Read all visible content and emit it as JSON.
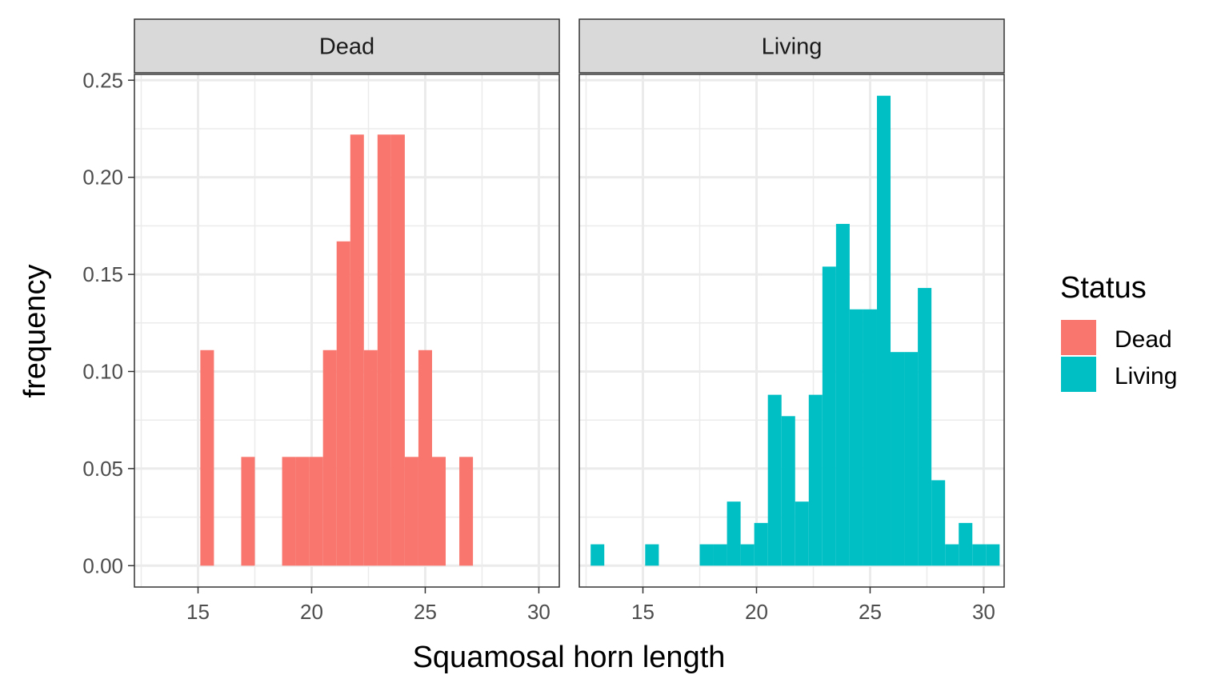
{
  "chart_data": {
    "type": "bar",
    "subtype": "faceted-histogram",
    "title": "",
    "xlabel": "Squamosal horn length",
    "ylabel": "frequency",
    "xlim": [
      12.2,
      30.9
    ],
    "ylim": [
      -0.011,
      0.253
    ],
    "x_ticks": [
      15,
      20,
      25,
      30
    ],
    "x_tick_labels": [
      "15",
      "20",
      "25",
      "30"
    ],
    "y_ticks": [
      0,
      0.05,
      0.1,
      0.15,
      0.2,
      0.25
    ],
    "y_tick_labels": [
      "0.00",
      "0.05",
      "0.10",
      "0.15",
      "0.20",
      "0.25"
    ],
    "grid": true,
    "bin_width": 0.6,
    "legend": {
      "title": "Status",
      "placement": "right",
      "items": [
        {
          "label": "Dead",
          "color": "#F8766D"
        },
        {
          "label": "Living",
          "color": "#00BFC4"
        }
      ]
    },
    "facets": [
      {
        "name": "Dead",
        "color": "#F8766D",
        "bins": [
          {
            "x": 15.4,
            "y": 0.111
          },
          {
            "x": 17.2,
            "y": 0.056
          },
          {
            "x": 19.0,
            "y": 0.056
          },
          {
            "x": 19.6,
            "y": 0.056
          },
          {
            "x": 20.2,
            "y": 0.056
          },
          {
            "x": 20.8,
            "y": 0.111
          },
          {
            "x": 21.4,
            "y": 0.167
          },
          {
            "x": 22.0,
            "y": 0.222
          },
          {
            "x": 22.6,
            "y": 0.111
          },
          {
            "x": 23.2,
            "y": 0.222
          },
          {
            "x": 23.8,
            "y": 0.222
          },
          {
            "x": 24.4,
            "y": 0.056
          },
          {
            "x": 25.0,
            "y": 0.111
          },
          {
            "x": 25.6,
            "y": 0.056
          },
          {
            "x": 26.8,
            "y": 0.056
          }
        ]
      },
      {
        "name": "Living",
        "color": "#00BFC4",
        "bins": [
          {
            "x": 13.0,
            "y": 0.011
          },
          {
            "x": 15.4,
            "y": 0.011
          },
          {
            "x": 17.8,
            "y": 0.011
          },
          {
            "x": 18.4,
            "y": 0.011
          },
          {
            "x": 19.0,
            "y": 0.033
          },
          {
            "x": 19.6,
            "y": 0.011
          },
          {
            "x": 20.2,
            "y": 0.022
          },
          {
            "x": 20.8,
            "y": 0.088
          },
          {
            "x": 21.4,
            "y": 0.077
          },
          {
            "x": 22.0,
            "y": 0.033
          },
          {
            "x": 22.6,
            "y": 0.088
          },
          {
            "x": 23.2,
            "y": 0.154
          },
          {
            "x": 23.8,
            "y": 0.176
          },
          {
            "x": 24.4,
            "y": 0.132
          },
          {
            "x": 25.0,
            "y": 0.132
          },
          {
            "x": 25.6,
            "y": 0.242
          },
          {
            "x": 26.2,
            "y": 0.11
          },
          {
            "x": 26.8,
            "y": 0.11
          },
          {
            "x": 27.4,
            "y": 0.143
          },
          {
            "x": 28.0,
            "y": 0.044
          },
          {
            "x": 28.6,
            "y": 0.011
          },
          {
            "x": 29.2,
            "y": 0.022
          },
          {
            "x": 29.8,
            "y": 0.011
          },
          {
            "x": 30.4,
            "y": 0.011
          }
        ]
      }
    ]
  }
}
